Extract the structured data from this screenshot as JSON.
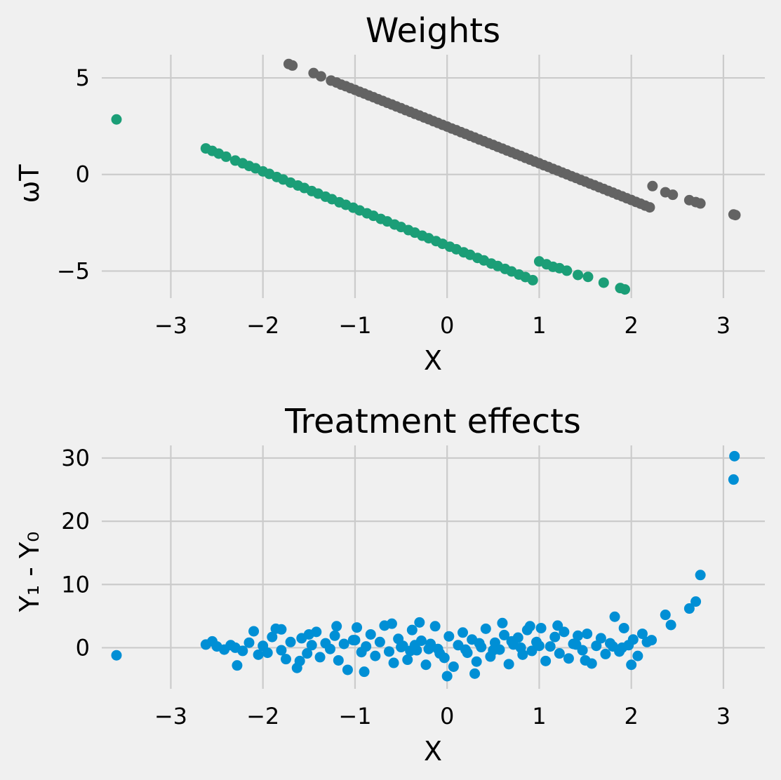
{
  "colors": {
    "background": "#f0f0f0",
    "grid": "#cbcbcb",
    "treated": "#636363",
    "control": "#1b9e77",
    "effects": "#008fd5"
  },
  "chart_data": [
    {
      "type": "scatter",
      "title": "Weights",
      "xlabel": "X",
      "ylabel": "ωT",
      "xlim": [
        -3.75,
        3.45
      ],
      "ylim": [
        -6.4,
        6.2
      ],
      "xticks": [
        -3,
        -2,
        -1,
        0,
        1,
        2,
        3
      ],
      "xtick_labels": [
        "−3",
        "−2",
        "−1",
        "0",
        "1",
        "2",
        "3"
      ],
      "yticks": [
        -5,
        0,
        5
      ],
      "ytick_labels": [
        "−5",
        "0",
        "5"
      ],
      "grid": true,
      "series": [
        {
          "color": "#636363",
          "x": [
            -1.72,
            -1.68,
            -1.45,
            -1.37,
            -1.26,
            -1.2,
            -1.15,
            -1.1,
            -1.05,
            -1.0,
            -0.95,
            -0.9,
            -0.85,
            -0.8,
            -0.75,
            -0.7,
            -0.65,
            -0.6,
            -0.55,
            -0.5,
            -0.45,
            -0.4,
            -0.35,
            -0.3,
            -0.25,
            -0.2,
            -0.15,
            -0.1,
            -0.05,
            0.0,
            0.05,
            0.1,
            0.15,
            0.2,
            0.25,
            0.3,
            0.35,
            0.4,
            0.45,
            0.5,
            0.55,
            0.6,
            0.65,
            0.7,
            0.75,
            0.8,
            0.85,
            0.9,
            0.95,
            1.0,
            1.05,
            1.1,
            1.15,
            1.2,
            1.25,
            1.3,
            1.35,
            1.4,
            1.45,
            1.5,
            1.55,
            1.6,
            1.65,
            1.7,
            1.75,
            1.8,
            1.85,
            1.9,
            1.95,
            2.0,
            2.05,
            2.1,
            2.15,
            2.2,
            2.23,
            2.37,
            2.45,
            2.63,
            2.7,
            2.75,
            3.11,
            3.13
          ],
          "y": [
            5.72,
            5.64,
            5.25,
            5.08,
            4.86,
            4.76,
            4.65,
            4.57,
            4.47,
            4.38,
            4.28,
            4.19,
            4.09,
            4.0,
            3.9,
            3.81,
            3.71,
            3.62,
            3.52,
            3.43,
            3.33,
            3.24,
            3.14,
            3.05,
            2.95,
            2.86,
            2.76,
            2.67,
            2.57,
            2.48,
            2.38,
            2.29,
            2.19,
            2.1,
            2.0,
            1.91,
            1.81,
            1.72,
            1.62,
            1.53,
            1.43,
            1.34,
            1.24,
            1.15,
            1.05,
            0.96,
            0.86,
            0.77,
            0.67,
            0.58,
            0.48,
            0.39,
            0.29,
            0.2,
            0.1,
            0.01,
            -0.09,
            -0.18,
            -0.28,
            -0.37,
            -0.47,
            -0.56,
            -0.66,
            -0.75,
            -0.85,
            -0.94,
            -1.04,
            -1.13,
            -1.23,
            -1.32,
            -1.42,
            -1.51,
            -1.61,
            -1.7,
            -0.6,
            -0.92,
            -1.05,
            -1.33,
            -1.43,
            -1.5,
            -2.07,
            -2.1
          ]
        },
        {
          "color": "#1b9e77",
          "x": [
            -3.59,
            -2.62,
            -2.55,
            -2.48,
            -2.4,
            -2.3,
            -2.22,
            -2.15,
            -2.08,
            -2.0,
            -1.93,
            -1.85,
            -1.78,
            -1.7,
            -1.62,
            -1.55,
            -1.47,
            -1.4,
            -1.32,
            -1.25,
            -1.17,
            -1.1,
            -1.02,
            -0.95,
            -0.87,
            -0.8,
            -0.72,
            -0.65,
            -0.57,
            -0.5,
            -0.42,
            -0.35,
            -0.27,
            -0.2,
            -0.12,
            -0.05,
            0.03,
            0.1,
            0.18,
            0.25,
            0.33,
            0.4,
            0.48,
            0.55,
            0.63,
            0.7,
            0.78,
            0.85,
            0.93,
            1.0,
            1.08,
            1.15,
            1.22,
            1.3,
            1.42,
            1.53,
            1.7,
            1.88,
            1.93
          ],
          "y": [
            2.85,
            1.35,
            1.22,
            1.08,
            0.92,
            0.72,
            0.58,
            0.44,
            0.32,
            0.16,
            0.03,
            -0.13,
            -0.26,
            -0.42,
            -0.57,
            -0.7,
            -0.86,
            -0.99,
            -1.15,
            -1.28,
            -1.44,
            -1.57,
            -1.72,
            -1.86,
            -2.01,
            -2.14,
            -2.3,
            -2.43,
            -2.59,
            -2.72,
            -2.88,
            -3.01,
            -3.17,
            -3.3,
            -3.45,
            -3.59,
            -3.74,
            -3.87,
            -4.03,
            -4.16,
            -4.32,
            -4.45,
            -4.61,
            -4.74,
            -4.89,
            -5.02,
            -5.18,
            -5.31,
            -5.47,
            -4.5,
            -4.65,
            -4.78,
            -4.85,
            -4.98,
            -5.2,
            -5.3,
            -5.6,
            -5.88,
            -5.95
          ]
        }
      ]
    },
    {
      "type": "scatter",
      "title": "Treatment effects",
      "xlabel": "X",
      "ylabel": "Y₁ - Y₀",
      "xlim": [
        -3.75,
        3.45
      ],
      "ylim": [
        -6.5,
        32
      ],
      "xticks": [
        -3,
        -2,
        -1,
        0,
        1,
        2,
        3
      ],
      "xtick_labels": [
        "−3",
        "−2",
        "−1",
        "0",
        "1",
        "2",
        "3"
      ],
      "yticks": [
        0,
        10,
        20,
        30
      ],
      "ytick_labels": [
        "0",
        "10",
        "20",
        "30"
      ],
      "grid": true,
      "series": [
        {
          "color": "#008fd5",
          "x": [
            -3.59,
            -2.62,
            -2.55,
            -2.5,
            -2.42,
            -2.35,
            -2.28,
            -2.22,
            -2.15,
            -2.1,
            -2.05,
            -2.0,
            -1.95,
            -1.9,
            -1.86,
            -1.8,
            -1.75,
            -1.7,
            -1.63,
            -1.58,
            -1.52,
            -1.47,
            -1.42,
            -1.38,
            -1.32,
            -1.27,
            -1.22,
            -1.18,
            -1.12,
            -1.08,
            -1.02,
            -0.98,
            -0.93,
            -0.88,
            -0.83,
            -0.78,
            -0.73,
            -0.68,
            -0.63,
            -0.58,
            -0.53,
            -0.48,
            -0.43,
            -0.38,
            -0.33,
            -0.28,
            -0.23,
            -0.18,
            -0.13,
            -0.08,
            -0.03,
            0.02,
            0.07,
            0.12,
            0.17,
            0.22,
            0.27,
            0.32,
            0.37,
            0.42,
            0.47,
            0.52,
            0.57,
            0.62,
            0.67,
            0.72,
            0.77,
            0.82,
            0.87,
            0.92,
            0.97,
            1.02,
            1.07,
            1.12,
            1.17,
            1.22,
            1.27,
            1.32,
            1.37,
            1.42,
            1.47,
            1.52,
            1.57,
            1.62,
            1.67,
            1.72,
            1.77,
            1.82,
            1.87,
            1.92,
            1.97,
            2.02,
            2.07,
            2.12,
            2.17,
            2.22,
            2.37,
            2.43,
            2.63,
            2.7,
            2.75,
            3.11,
            3.12,
            -1.8,
            -1.2,
            -0.9,
            -0.6,
            -0.3,
            0.0,
            0.3,
            0.6,
            0.9,
            1.2,
            1.5,
            -2.3,
            -1.6,
            -1.0,
            -0.4,
            0.2,
            0.8,
            1.4,
            1.9,
            -0.1,
            -0.5,
            0.5,
            1.0,
            -1.5,
            2.0,
            1.8,
            -0.35,
            -0.2,
            0.35,
            0.7
          ],
          "y": [
            -1.2,
            0.5,
            1.0,
            0.2,
            -0.3,
            0.4,
            -2.8,
            -0.5,
            0.8,
            2.6,
            -1.1,
            0.3,
            -0.8,
            1.7,
            3.0,
            -0.4,
            -1.8,
            0.9,
            -3.2,
            1.5,
            -0.9,
            0.4,
            2.5,
            -1.5,
            0.7,
            -0.2,
            1.9,
            -2.0,
            0.6,
            -3.5,
            1.2,
            3.2,
            -0.7,
            0.2,
            2.1,
            -1.3,
            0.9,
            3.5,
            -0.6,
            -2.4,
            1.4,
            0.3,
            -1.9,
            2.8,
            -0.4,
            1.1,
            -2.7,
            0.6,
            3.4,
            -0.9,
            -1.6,
            1.8,
            -3.0,
            0.4,
            2.4,
            -0.8,
            1.3,
            -2.2,
            0.1,
            3.0,
            -1.4,
            0.8,
            -0.3,
            2.0,
            -2.6,
            0.5,
            1.6,
            -1.1,
            2.8,
            -0.5,
            0.9,
            3.1,
            -2.1,
            0.2,
            1.7,
            -0.9,
            2.5,
            -1.7,
            0.6,
            1.9,
            -0.4,
            2.2,
            -2.5,
            0.3,
            1.5,
            -1.0,
            0.7,
            4.9,
            -0.6,
            3.1,
            0.4,
            1.3,
            -1.3,
            2.2,
            0.9,
            1.2,
            5.2,
            3.6,
            6.2,
            7.3,
            11.5,
            26.6,
            30.3,
            2.9,
            3.4,
            -3.8,
            3.8,
            4.0,
            -4.5,
            -4.1,
            3.9,
            3.4,
            3.5,
            -2.0,
            0.0,
            -2.1,
            1.2,
            -0.5,
            -0.3,
            0.0,
            0.5,
            0.0,
            -0.2,
            0.1,
            -0.4,
            0.3,
            2.1,
            -2.7,
            0.2,
            0.4,
            -0.2,
            0.7,
            1.0
          ]
        }
      ]
    }
  ]
}
